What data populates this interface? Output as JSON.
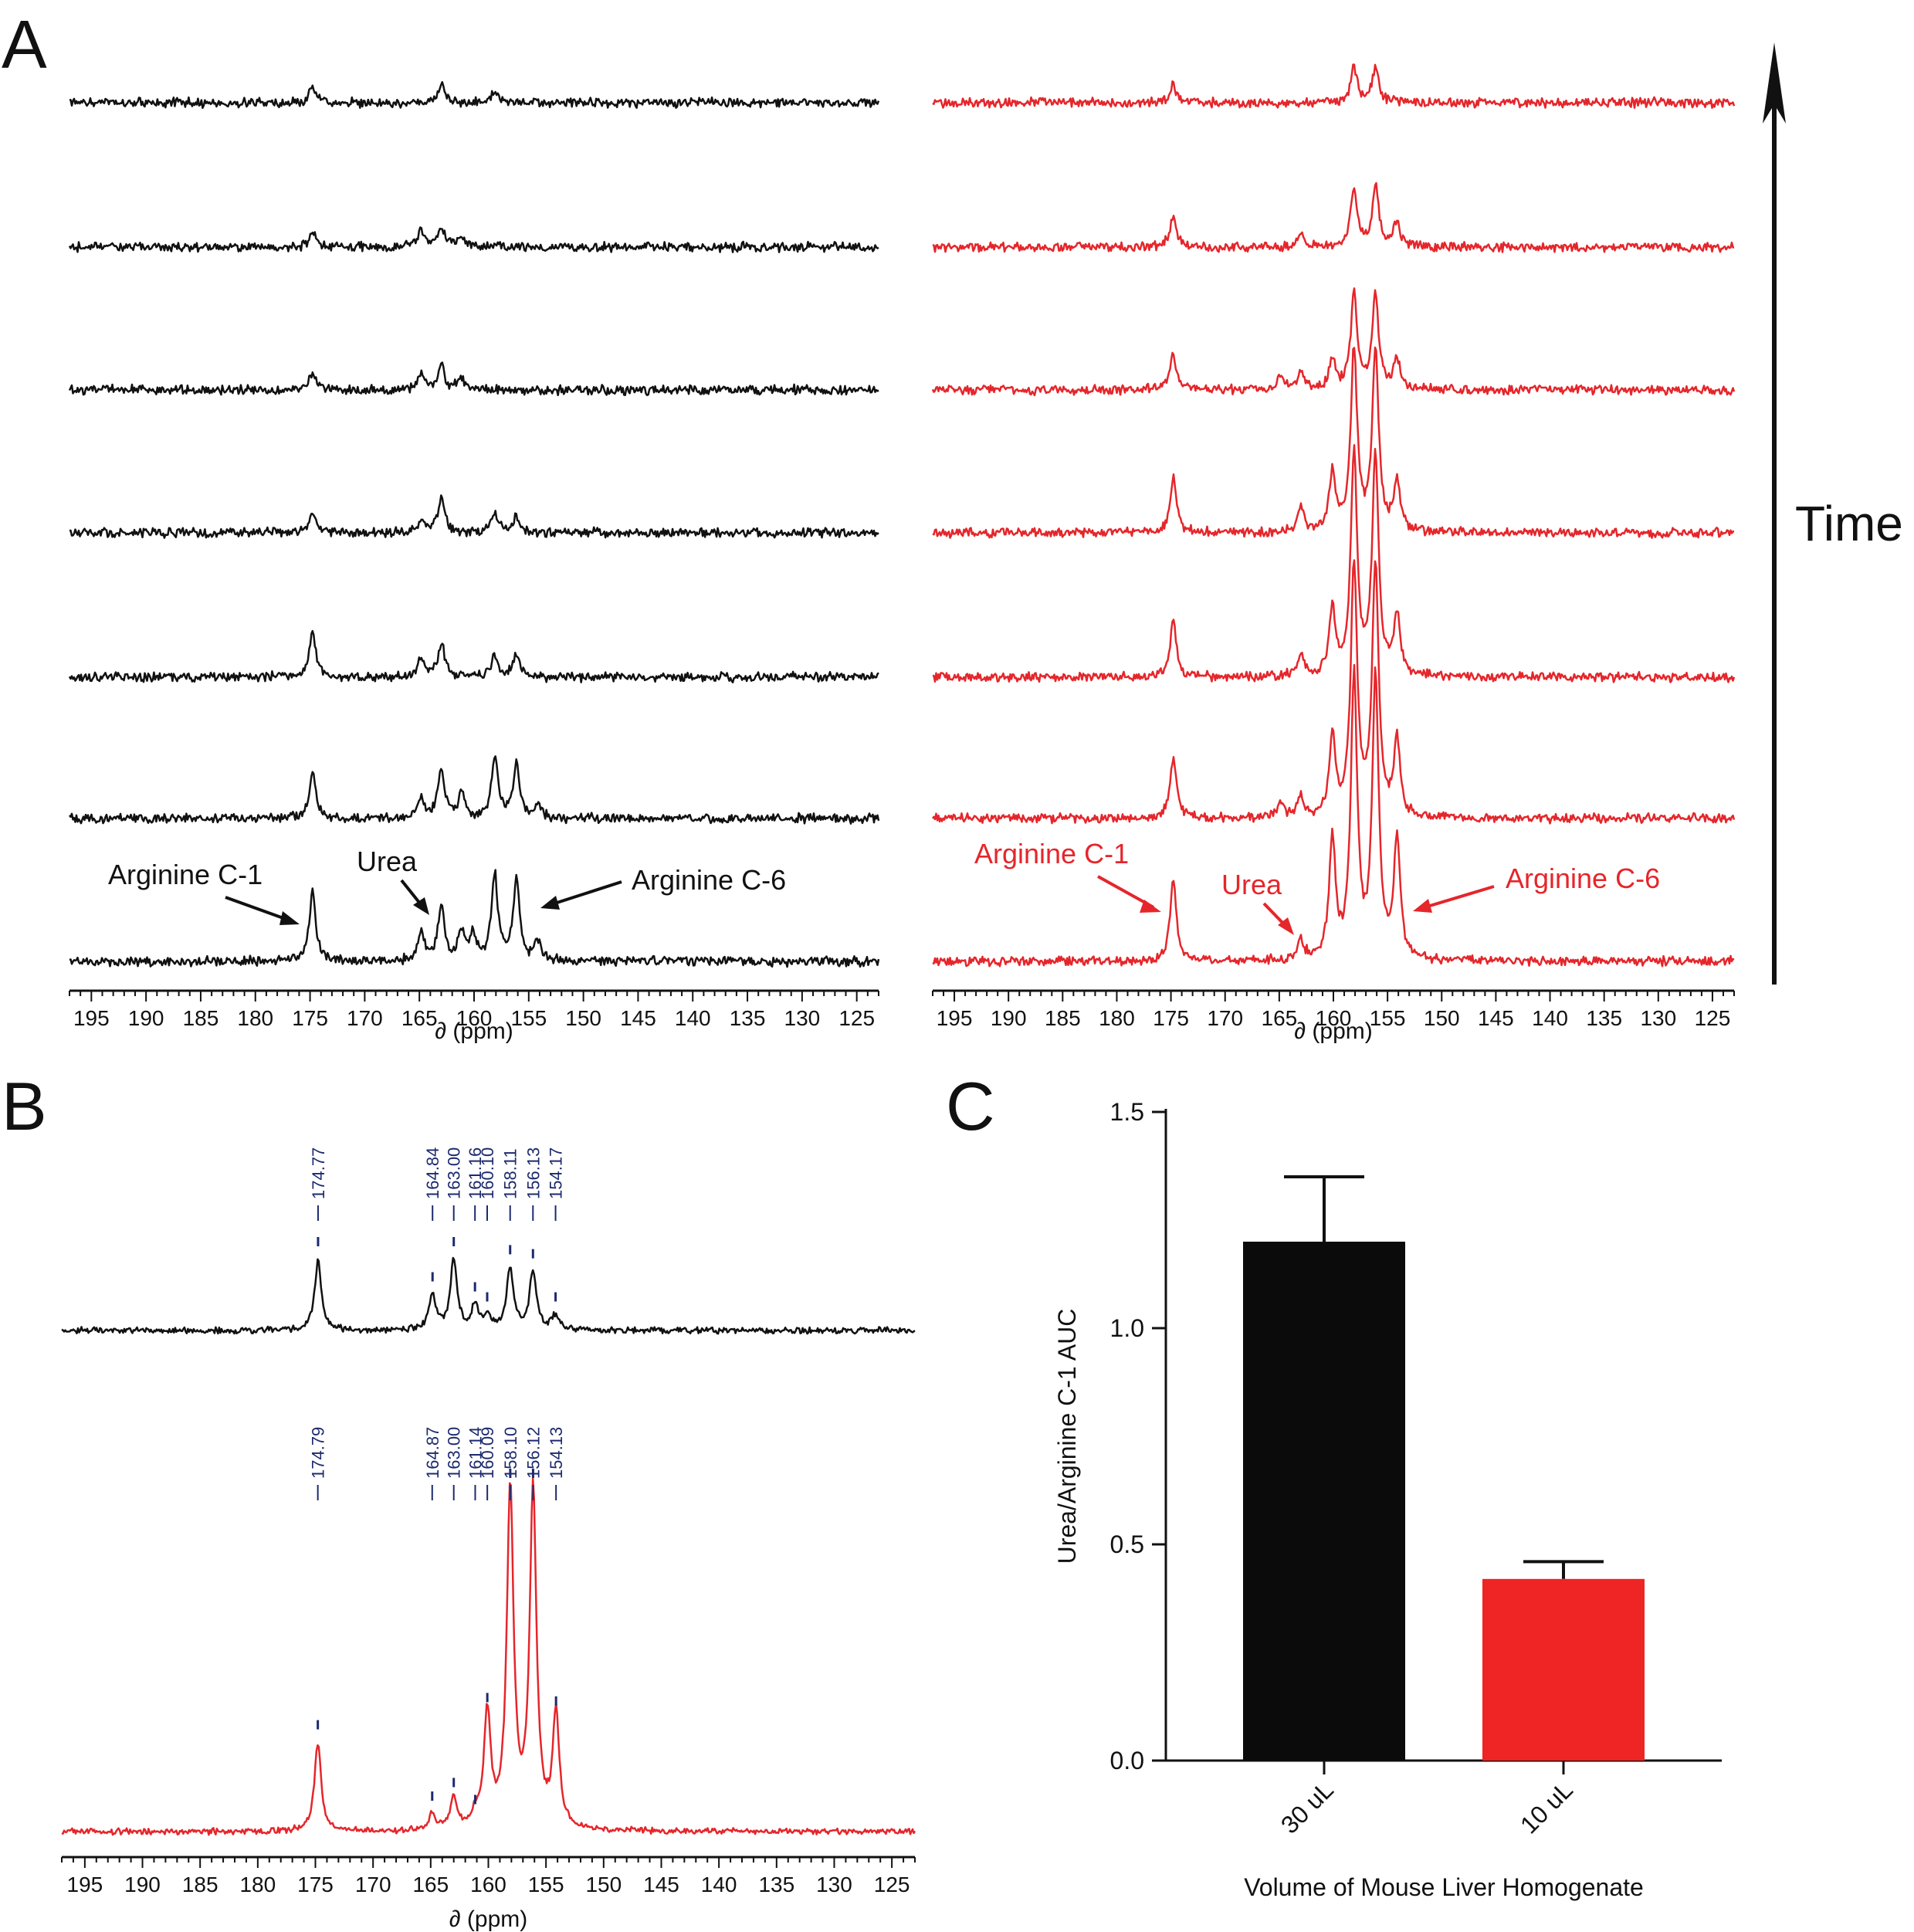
{
  "colors": {
    "black_series": "#111111",
    "red_series": "#e5262b",
    "peak_label": "#1c2a6e",
    "bar_30": "#0b0b0c",
    "bar_10": "#ee2425"
  },
  "panels": {
    "A": {
      "letter": "A",
      "time_label": "Time"
    },
    "B": {
      "letter": "B"
    },
    "C": {
      "letter": "C"
    }
  },
  "annotations": {
    "black": {
      "arg_c1": "Arginine C-1",
      "urea": "Urea",
      "arg_c6": "Arginine C-6"
    },
    "red": {
      "arg_c1": "Arginine C-1",
      "urea": "Urea",
      "arg_c6": "Arginine C-6"
    }
  },
  "chart_data": [
    {
      "type": "line",
      "panel": "A-left",
      "description_kind": "stacked 13C NMR spectra (7 time points), black",
      "xlabel": "∂ (ppm)",
      "xlim": [
        197,
        123
      ],
      "xreversed": true,
      "xticks": [
        195,
        190,
        185,
        180,
        175,
        170,
        165,
        160,
        155,
        150,
        145,
        140,
        135,
        130,
        125
      ],
      "series": [
        {
          "peaks": [
            [
              174.77,
              0.15
            ],
            [
              163.0,
              0.2
            ],
            [
              158.11,
              0.12
            ]
          ]
        },
        {
          "peaks": [
            [
              174.77,
              0.15
            ],
            [
              164.84,
              0.18
            ],
            [
              163.0,
              0.18
            ],
            [
              161.16,
              0.1
            ]
          ]
        },
        {
          "peaks": [
            [
              174.77,
              0.18
            ],
            [
              164.84,
              0.18
            ],
            [
              163.0,
              0.25
            ],
            [
              161.16,
              0.12
            ]
          ]
        },
        {
          "peaks": [
            [
              174.77,
              0.22
            ],
            [
              164.84,
              0.14
            ],
            [
              163.0,
              0.35
            ],
            [
              158.11,
              0.2
            ],
            [
              156.13,
              0.16
            ]
          ]
        },
        {
          "peaks": [
            [
              174.77,
              0.45
            ],
            [
              164.84,
              0.2
            ],
            [
              163.0,
              0.35
            ],
            [
              158.11,
              0.2
            ],
            [
              156.13,
              0.24
            ]
          ]
        },
        {
          "peaks": [
            [
              174.77,
              0.48
            ],
            [
              164.84,
              0.2
            ],
            [
              163.0,
              0.5
            ],
            [
              161.16,
              0.25
            ],
            [
              158.11,
              0.6
            ],
            [
              156.13,
              0.55
            ],
            [
              154.17,
              0.15
            ]
          ]
        },
        {
          "peaks": [
            [
              174.77,
              0.7
            ],
            [
              164.84,
              0.28
            ],
            [
              163.0,
              0.55
            ],
            [
              161.16,
              0.28
            ],
            [
              160.1,
              0.25
            ],
            [
              158.11,
              0.85
            ],
            [
              156.13,
              0.8
            ],
            [
              154.17,
              0.2
            ]
          ]
        }
      ]
    },
    {
      "type": "line",
      "panel": "A-right",
      "description_kind": "stacked 13C NMR spectra (7 time points), red",
      "xlabel": "∂ (ppm)",
      "xlim": [
        197,
        123
      ],
      "xreversed": true,
      "xticks": [
        195,
        190,
        185,
        180,
        175,
        170,
        165,
        160,
        155,
        150,
        145,
        140,
        135,
        130,
        125
      ],
      "series": [
        {
          "peaks": [
            [
              174.79,
              0.18
            ],
            [
              158.1,
              0.35
            ],
            [
              156.12,
              0.35
            ]
          ]
        },
        {
          "peaks": [
            [
              174.79,
              0.3
            ],
            [
              163.0,
              0.15
            ],
            [
              158.1,
              0.6
            ],
            [
              156.12,
              0.6
            ],
            [
              154.13,
              0.25
            ]
          ]
        },
        {
          "peaks": [
            [
              174.79,
              0.35
            ],
            [
              164.87,
              0.15
            ],
            [
              163.0,
              0.2
            ],
            [
              160.09,
              0.3
            ],
            [
              158.1,
              0.95
            ],
            [
              156.12,
              0.95
            ],
            [
              154.13,
              0.3
            ]
          ]
        },
        {
          "peaks": [
            [
              174.79,
              0.55
            ],
            [
              163.0,
              0.25
            ],
            [
              160.09,
              0.6
            ],
            [
              158.1,
              1.8
            ],
            [
              156.12,
              1.8
            ],
            [
              154.13,
              0.5
            ]
          ]
        },
        {
          "peaks": [
            [
              174.79,
              0.55
            ],
            [
              163.0,
              0.2
            ],
            [
              160.09,
              0.65
            ],
            [
              158.1,
              2.2
            ],
            [
              156.12,
              2.2
            ],
            [
              154.13,
              0.6
            ]
          ]
        },
        {
          "peaks": [
            [
              174.79,
              0.6
            ],
            [
              164.87,
              0.15
            ],
            [
              163.0,
              0.2
            ],
            [
              160.09,
              0.8
            ],
            [
              158.1,
              2.5
            ],
            [
              156.12,
              2.5
            ],
            [
              154.13,
              0.75
            ]
          ]
        },
        {
          "peaks": [
            [
              174.79,
              0.8
            ],
            [
              163.0,
              0.2
            ],
            [
              160.09,
              1.2
            ],
            [
              158.1,
              2.8
            ],
            [
              156.12,
              2.8
            ],
            [
              154.13,
              1.2
            ]
          ]
        }
      ]
    },
    {
      "type": "line",
      "panel": "B",
      "description_kind": "two 13C NMR spectra with peak picks",
      "xlabel": "∂ (ppm)",
      "xlim": [
        197,
        123
      ],
      "xreversed": true,
      "xticks": [
        195,
        190,
        185,
        180,
        175,
        170,
        165,
        160,
        155,
        150,
        145,
        140,
        135,
        130,
        125
      ],
      "series": [
        {
          "peak_labels": [
            "174.77",
            "164.84",
            "163.00",
            "161.16",
            "160.10",
            "158.11",
            "156.13",
            "154.17"
          ],
          "peaks": [
            [
              174.77,
              0.7
            ],
            [
              164.84,
              0.35
            ],
            [
              163.0,
              0.7
            ],
            [
              161.16,
              0.25
            ],
            [
              160.1,
              0.15
            ],
            [
              158.11,
              0.62
            ],
            [
              156.13,
              0.58
            ],
            [
              154.17,
              0.15
            ]
          ]
        },
        {
          "peak_labels": [
            "174.79",
            "164.87",
            "163.00",
            "161.14",
            "160.09",
            "158.10",
            "156.12",
            "154.13"
          ],
          "peaks": [
            [
              174.79,
              0.26
            ],
            [
              164.87,
              0.05
            ],
            [
              163.0,
              0.09
            ],
            [
              161.14,
              0.04
            ],
            [
              160.09,
              0.34
            ],
            [
              158.1,
              1.0
            ],
            [
              156.12,
              1.0
            ],
            [
              154.13,
              0.33
            ]
          ]
        }
      ]
    },
    {
      "type": "bar",
      "panel": "C",
      "categories": [
        "30 uL",
        "10 uL"
      ],
      "values": [
        1.2,
        0.42
      ],
      "errors": [
        0.15,
        0.04
      ],
      "xlabel": "Volume of Mouse Liver Homogenate",
      "ylabel": "Urea/Arginine C-1 AUC",
      "ylim": [
        0,
        1.5
      ],
      "yticks": [
        0.0,
        0.5,
        1.0,
        1.5
      ],
      "ytick_labels": [
        "0.0",
        "0.5",
        "1.0",
        "1.5"
      ]
    }
  ]
}
